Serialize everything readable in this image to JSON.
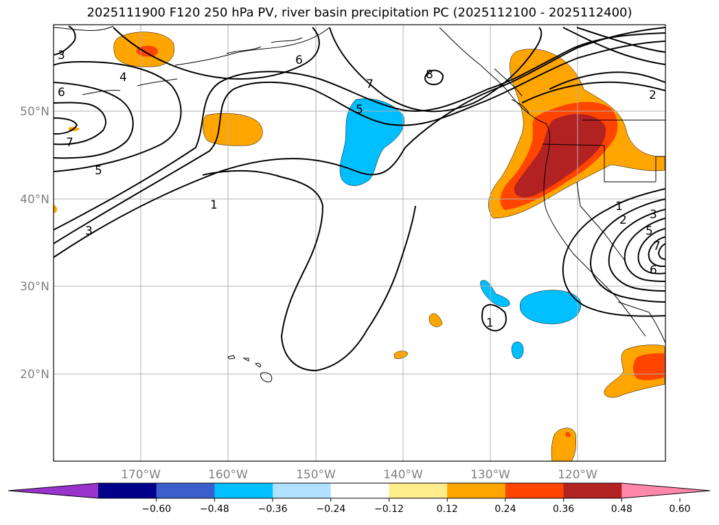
{
  "title": "2025111900 F120 250 hPa PV, river basin precipitation PC (2025112100 - 2025112400)",
  "latitude_labels": [
    "50°N",
    "40°N",
    "30°N",
    "20°N"
  ],
  "longitude_labels": [
    "170°W",
    "160°W",
    "150°W",
    "140°W",
    "130°W",
    "120°W"
  ],
  "colorbar": {
    "colors": [
      "#9933cc",
      "#00008b",
      "#3a5fcd",
      "#00bfff",
      "#b0e2ff",
      "#ffffff",
      "#ffec8b",
      "#ffa500",
      "#ff4500",
      "#b22222",
      "#ff88aa"
    ],
    "tick_labels": [
      "−0.60",
      "−0.48",
      "−0.36",
      "−0.24",
      "−0.12",
      "0.12",
      "0.24",
      "0.36",
      "0.48",
      "0.60"
    ]
  },
  "fill_colors": {
    "orange": "#ffa500",
    "red_orange": "#ff4500",
    "dark_red": "#b22222",
    "cyan": "#00bfff"
  },
  "contour_labels": [
    "3",
    "4",
    "6",
    "7",
    "5",
    "3",
    "1",
    "6",
    "7",
    "8",
    "5",
    "2",
    "1",
    "2",
    "3",
    "5",
    "7",
    "6",
    "1"
  ]
}
